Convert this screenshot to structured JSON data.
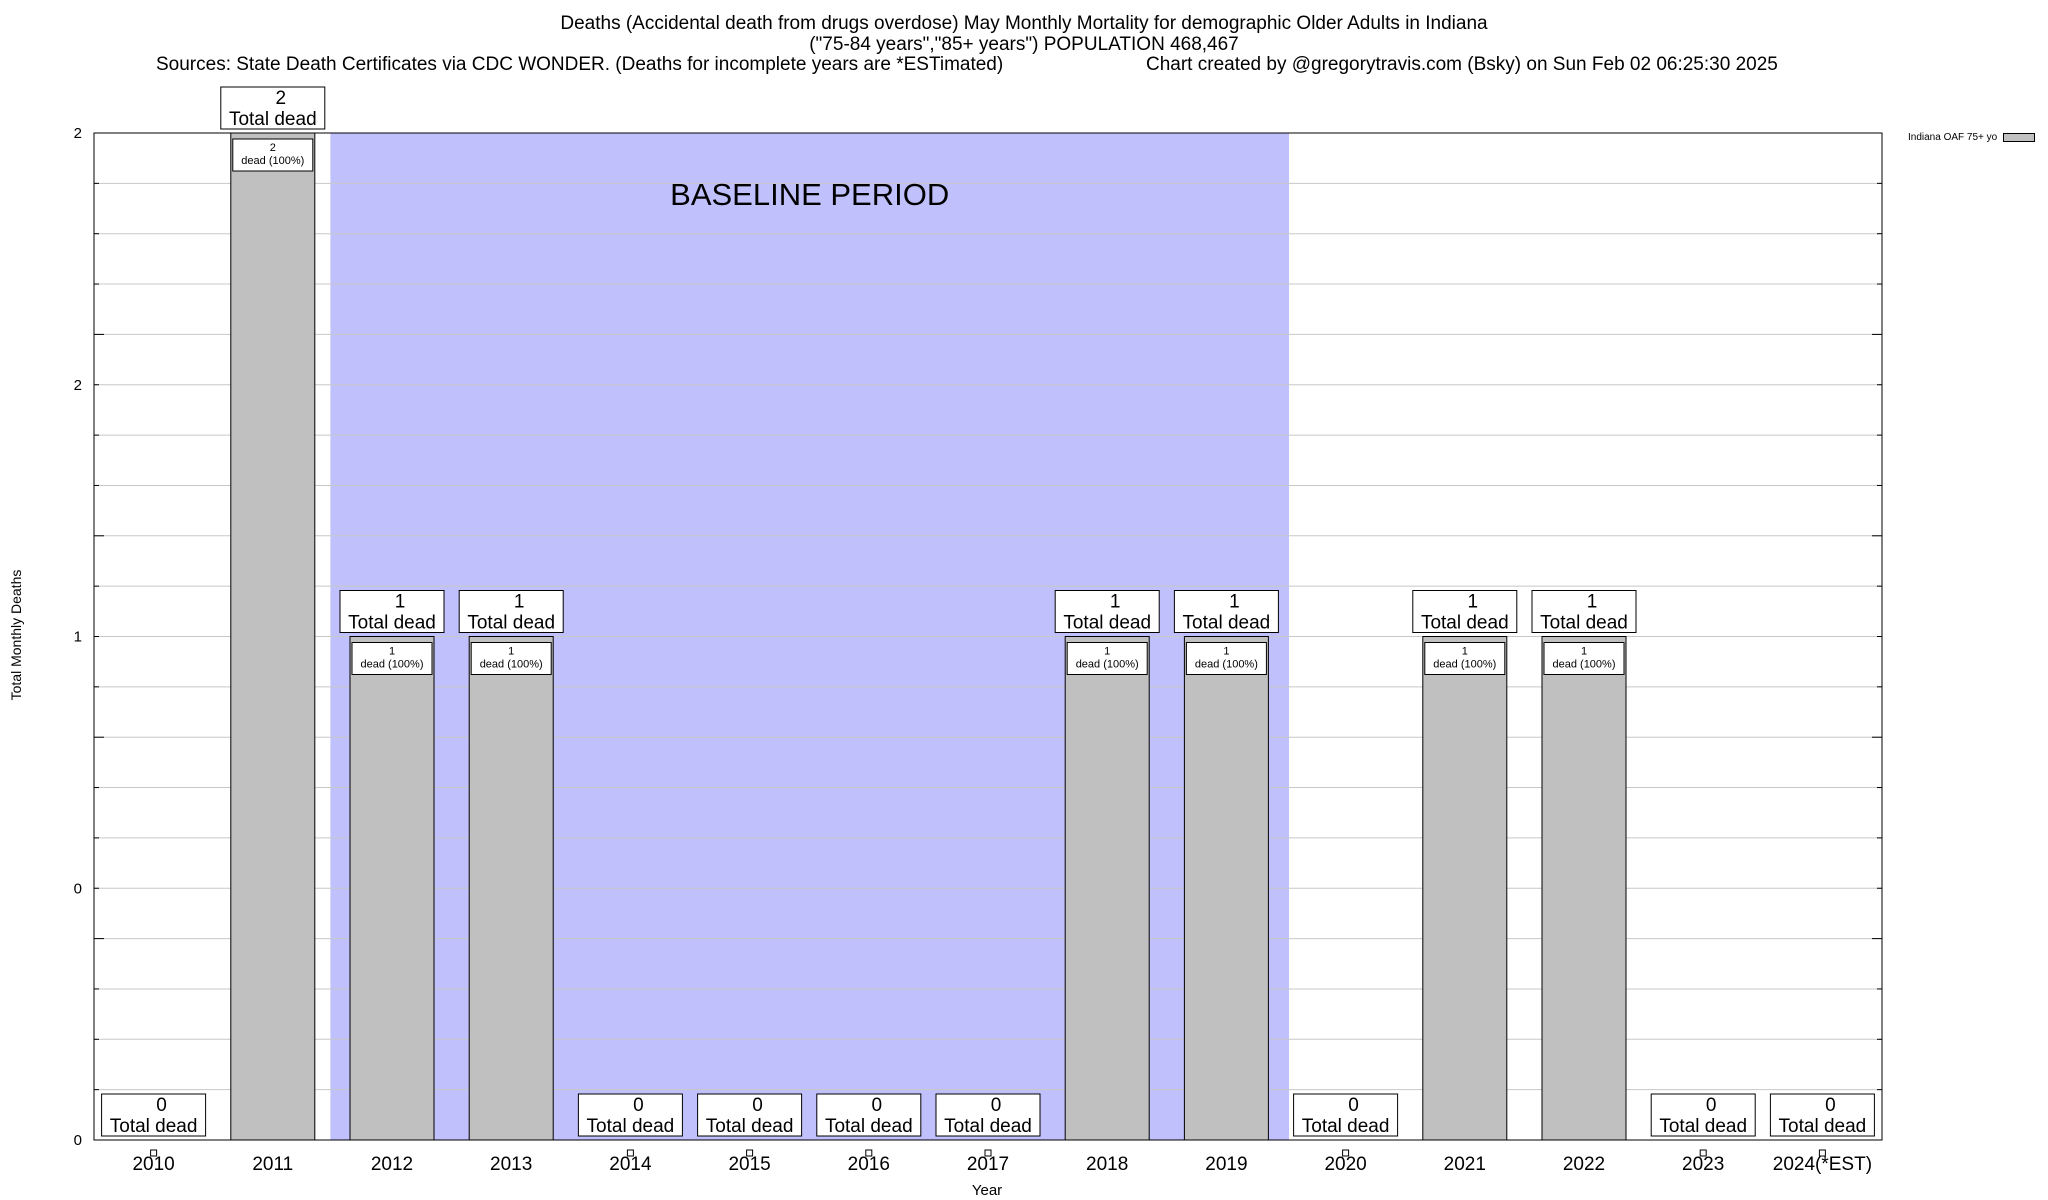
{
  "title": {
    "line1": "Deaths (Accidental death from drugs overdose) May Monthly Mortality for demographic Older Adults in Indiana",
    "line2": "(\"75-84 years\",\"85+ years\") POPULATION 468,467",
    "sources": "Sources: State Death Certificates via CDC WONDER. (Deaths for incomplete years are *ESTimated)",
    "credit": "Chart created by @gregorytravis.com (Bsky) on Sun Feb 02 06:25:30 2025"
  },
  "colors": {
    "bar_fill": "#c0c0c0",
    "baseline_fill": "#c0c0fc",
    "grid": "#c8c8c8"
  },
  "chart_data": {
    "type": "bar",
    "xlabel": "Year",
    "ylabel": "Total Monthly Deaths",
    "ylim": [
      0,
      2
    ],
    "y_tick_labels": [
      "0",
      "0",
      "1",
      "2",
      "2"
    ],
    "grid": true,
    "categories": [
      "2010",
      "2011",
      "2012",
      "2013",
      "2014",
      "2015",
      "2016",
      "2017",
      "2018",
      "2019",
      "2020",
      "2021",
      "2022",
      "2023",
      "2024(*EST)"
    ],
    "series": [
      {
        "name": "Indiana OAF 75+ yo",
        "values": [
          0,
          2,
          1,
          1,
          0,
          0,
          0,
          0,
          1,
          1,
          0,
          1,
          1,
          0,
          0
        ]
      }
    ],
    "total_label_suffix": "Total dead",
    "inner_label_suffix": "dead (100%)",
    "baseline_period": {
      "label": "BASELINE PERIOD",
      "from": "2012",
      "to": "2019"
    },
    "legend_position": "top-right"
  }
}
